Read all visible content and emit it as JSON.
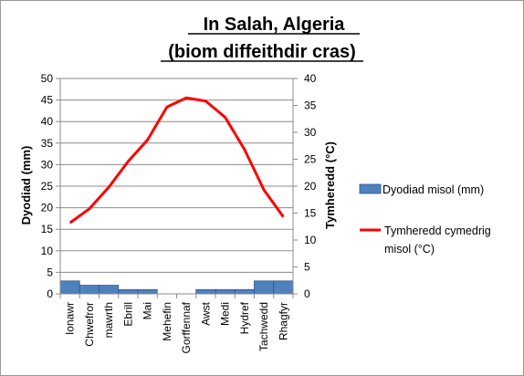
{
  "chart_data": {
    "type": "bar",
    "title": [
      "In Salah, Algeria",
      "(biom diffeithdir cras)"
    ],
    "categories": [
      "Ionawr",
      "Chwefror",
      "mawrth",
      "Ebrill",
      "Mai",
      "Mehefin",
      "Gorffennaf",
      "Awst",
      "Medi",
      "Hydref",
      "Tachwedd",
      "Rhagfyr"
    ],
    "series": [
      {
        "name": "Dyodiad misol (mm)",
        "type": "bar",
        "axis": "left",
        "color": "#4F81BD",
        "values": [
          3,
          2,
          2,
          1,
          1,
          0,
          0,
          1,
          1,
          1,
          3,
          3
        ]
      },
      {
        "name": "Tymheredd cymedrig misol (°C)",
        "type": "line",
        "axis": "right",
        "color": "#FF0000",
        "values": [
          13.2,
          15.8,
          19.8,
          24.6,
          28.6,
          34.7,
          36.4,
          35.8,
          32.8,
          26.8,
          19.3,
          14.3
        ]
      }
    ],
    "ylabel": "Dyodiad (mm)",
    "ylim": [
      0,
      50
    ],
    "yticks": [
      0,
      5,
      10,
      15,
      20,
      25,
      30,
      35,
      40,
      45,
      50
    ],
    "y2label": "Tymheredd (°C)",
    "y2lim": [
      0,
      40
    ],
    "y2ticks": [
      0,
      5,
      10,
      15,
      20,
      25,
      30,
      35,
      40
    ],
    "grid": true,
    "legend_position": "right"
  }
}
